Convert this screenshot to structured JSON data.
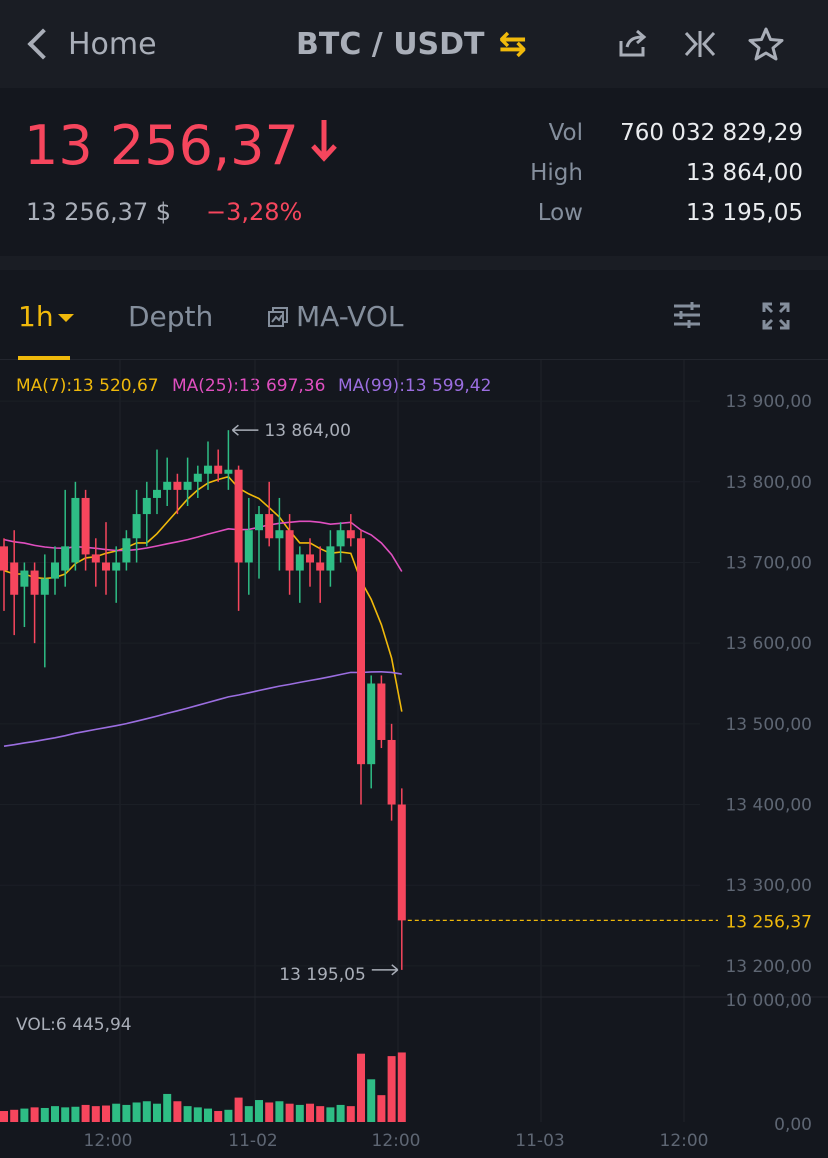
{
  "header": {
    "back_label": "Home",
    "pair": "BTC / USDT",
    "swap_icon": "swap-arrows-icon",
    "icons": [
      "share-icon",
      "compare-icon",
      "star-icon"
    ]
  },
  "ticker": {
    "price": "13 256,37",
    "price_usd": "13 256,37 $",
    "change": "−3,28%",
    "vol_label": "Vol",
    "vol": "760 032 829,29",
    "high_label": "High",
    "high": "13 864,00",
    "low_label": "Low",
    "low": "13 195,05"
  },
  "tabs": {
    "interval": "1h",
    "depth": "Depth",
    "indicator": "MA-VOL"
  },
  "colors": {
    "up": "#2ebd85",
    "down": "#f6465d",
    "accent": "#f0b90b",
    "ma7": "#f0b90b",
    "ma25": "#e04fc0",
    "ma99": "#9b6ee0"
  },
  "chart_data": {
    "type": "candlestick",
    "ma": {
      "ma7_label": "MA(7):13 520,67",
      "ma25_label": "MA(25):13 697,36",
      "ma99_label": "MA(99):13 599,42"
    },
    "price_axis": [
      "13 900,00",
      "13 800,00",
      "13 700,00",
      "13 600,00",
      "13 500,00",
      "13 400,00",
      "13 300,00",
      "13 200,00"
    ],
    "ylim": [
      13180,
      13920
    ],
    "high_marker": "13 864,00",
    "low_marker": "13 195,05",
    "last_price_label": "13 256,37",
    "last_price": 13256.37,
    "volume_label": "VOL:6 445,94",
    "volume_axis": [
      "10 000,00",
      "0,00"
    ],
    "volume_max": 10000,
    "time_axis": [
      "12:00",
      "11-02",
      "12:00",
      "11-03",
      "12:00"
    ],
    "candles": [
      [
        13720,
        13730,
        13640,
        13690
      ],
      [
        13700,
        13740,
        13610,
        13660
      ],
      [
        13670,
        13700,
        13620,
        13690
      ],
      [
        13690,
        13700,
        13600,
        13660
      ],
      [
        13660,
        13710,
        13570,
        13680
      ],
      [
        13680,
        13720,
        13660,
        13700
      ],
      [
        13690,
        13790,
        13670,
        13720
      ],
      [
        13700,
        13800,
        13690,
        13780
      ],
      [
        13780,
        13790,
        13690,
        13710
      ],
      [
        13710,
        13730,
        13670,
        13700
      ],
      [
        13700,
        13750,
        13660,
        13690
      ],
      [
        13690,
        13720,
        13650,
        13700
      ],
      [
        13700,
        13740,
        13690,
        13730
      ],
      [
        13730,
        13790,
        13700,
        13760
      ],
      [
        13760,
        13800,
        13720,
        13780
      ],
      [
        13780,
        13840,
        13760,
        13790
      ],
      [
        13790,
        13830,
        13770,
        13800
      ],
      [
        13800,
        13810,
        13760,
        13790
      ],
      [
        13790,
        13830,
        13770,
        13800
      ],
      [
        13800,
        13820,
        13780,
        13810
      ],
      [
        13810,
        13850,
        13790,
        13820
      ],
      [
        13820,
        13840,
        13800,
        13810
      ],
      [
        13810,
        13864,
        13790,
        13815
      ],
      [
        13815,
        13820,
        13640,
        13700
      ],
      [
        13700,
        13780,
        13660,
        13740
      ],
      [
        13740,
        13770,
        13680,
        13760
      ],
      [
        13760,
        13800,
        13720,
        13730
      ],
      [
        13730,
        13780,
        13690,
        13740
      ],
      [
        13740,
        13760,
        13660,
        13690
      ],
      [
        13690,
        13720,
        13650,
        13710
      ],
      [
        13710,
        13730,
        13670,
        13700
      ],
      [
        13700,
        13720,
        13650,
        13690
      ],
      [
        13690,
        13740,
        13670,
        13720
      ],
      [
        13720,
        13750,
        13700,
        13740
      ],
      [
        13740,
        13760,
        13720,
        13730
      ],
      [
        13730,
        13740,
        13400,
        13450
      ],
      [
        13450,
        13560,
        13420,
        13550
      ],
      [
        13550,
        13560,
        13470,
        13480
      ],
      [
        13480,
        13500,
        13380,
        13400
      ],
      [
        13400,
        13420,
        13195.05,
        13256.37
      ]
    ],
    "volumes": [
      900,
      1000,
      1100,
      1200,
      1150,
      1300,
      1200,
      1250,
      1400,
      1300,
      1350,
      1500,
      1400,
      1600,
      1700,
      1500,
      2300,
      1700,
      1300,
      1200,
      1100,
      900,
      1000,
      2000,
      1300,
      1800,
      1600,
      1700,
      1500,
      1400,
      1500,
      1300,
      1200,
      1400,
      1300,
      5600,
      3500,
      2200,
      5400,
      5700
    ]
  }
}
